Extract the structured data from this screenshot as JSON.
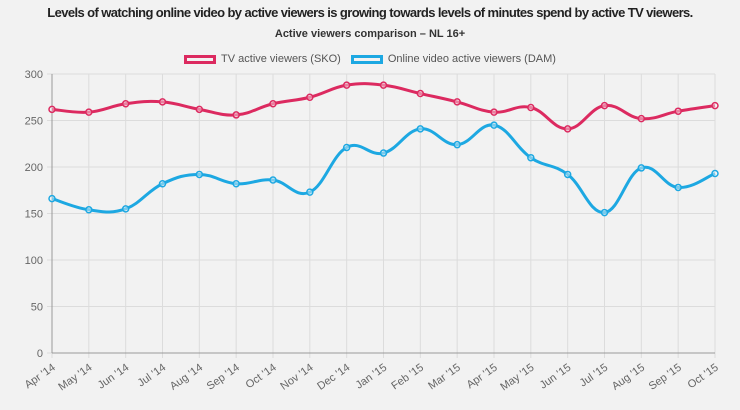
{
  "chart_data": {
    "type": "line",
    "title": "Levels of watching online video by active viewers is growing towards levels of minutes spend by active TV viewers.",
    "subtitle": "Active viewers comparison – NL 16+",
    "categories": [
      "Apr '14",
      "May '14",
      "Jun '14",
      "Jul '14",
      "Aug '14",
      "Sep '14",
      "Oct '14",
      "Nov '14",
      "Dec '14",
      "Jan '15",
      "Feb '15",
      "Mar '15",
      "Apr '15",
      "May '15",
      "Jun '15",
      "Jul '15",
      "Aug '15",
      "Sep '15",
      "Oct '15"
    ],
    "series": [
      {
        "name": "TV active viewers (SKO)",
        "color": "#dc2a60",
        "values": [
          262,
          259,
          268,
          270,
          262,
          256,
          268,
          275,
          288,
          288,
          279,
          270,
          259,
          264,
          241,
          266,
          252,
          260,
          266
        ]
      },
      {
        "name": "Online video active viewers (DAM)",
        "color": "#1da8e2",
        "values": [
          166,
          154,
          155,
          182,
          192,
          182,
          186,
          173,
          221,
          215,
          241,
          224,
          245,
          210,
          192,
          151,
          199,
          178,
          193
        ]
      }
    ],
    "ylim": [
      0,
      300
    ],
    "yticks": [
      0,
      50,
      100,
      150,
      200,
      250,
      300
    ],
    "grid": true,
    "legend": "top"
  }
}
